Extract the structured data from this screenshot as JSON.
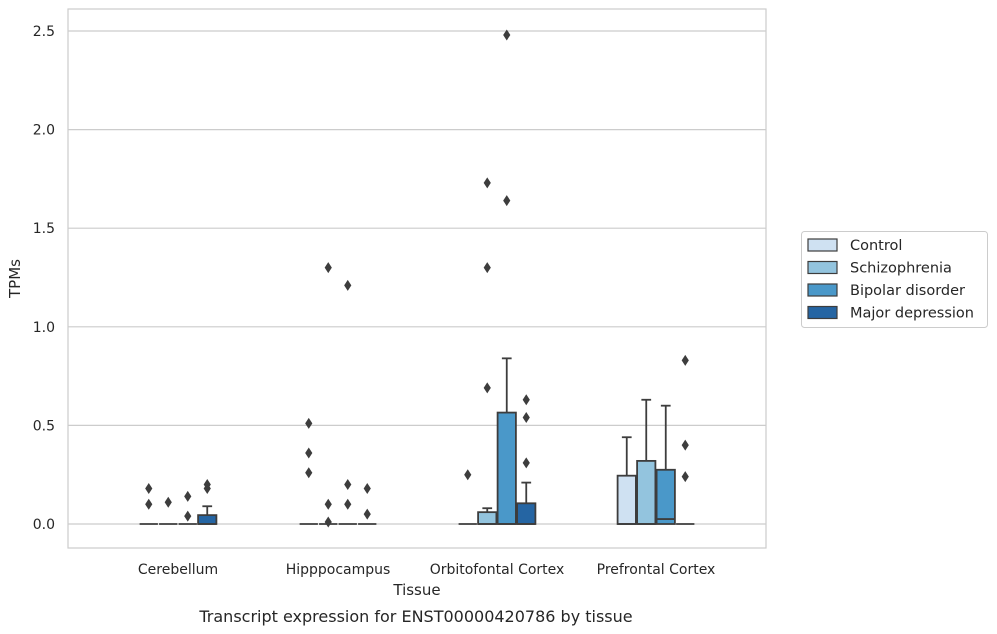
{
  "chart_data": {
    "type": "box",
    "caption": "Transcript expression for ENST00000420786 by tissue",
    "xlabel": "Tissue",
    "ylabel": "TPMs",
    "ylim": [
      -0.12,
      2.61
    ],
    "yticks": [
      0.0,
      0.5,
      1.0,
      1.5,
      2.0,
      2.5
    ],
    "ytick_labels": [
      "0.0",
      "0.5",
      "1.0",
      "1.5",
      "2.0",
      "2.5"
    ],
    "grid": true,
    "legend_position": "right, outside plot",
    "categories": [
      "Cerebellum",
      "Hipppocampus",
      "Orbitofontal Cortex",
      "Prefrontal Cortex"
    ],
    "series": [
      {
        "name": "Control",
        "color": "#cfe1f2",
        "boxes": [
          {
            "q1": 0,
            "median": 0,
            "q3": 0,
            "whisker_low": 0,
            "whisker_high": 0,
            "outliers": [
              0.1,
              0.18
            ]
          },
          {
            "q1": 0,
            "median": 0,
            "q3": 0,
            "whisker_low": 0,
            "whisker_high": 0,
            "outliers": [
              0.26,
              0.36,
              0.51
            ]
          },
          {
            "q1": 0,
            "median": 0,
            "q3": 0,
            "whisker_low": 0,
            "whisker_high": 0,
            "outliers": [
              0.25
            ]
          },
          {
            "q1": 0,
            "median": 0,
            "q3": 0.245,
            "whisker_low": 0,
            "whisker_high": 0.44,
            "outliers": []
          }
        ]
      },
      {
        "name": "Schizophrenia",
        "color": "#93c4de",
        "boxes": [
          {
            "q1": 0,
            "median": 0,
            "q3": 0,
            "whisker_low": 0,
            "whisker_high": 0,
            "outliers": [
              0.11
            ]
          },
          {
            "q1": 0,
            "median": 0,
            "q3": 0,
            "whisker_low": 0,
            "whisker_high": 0,
            "outliers": [
              0.01,
              0.1,
              1.3
            ]
          },
          {
            "q1": 0,
            "median": 0,
            "q3": 0.06,
            "whisker_low": 0,
            "whisker_high": 0.08,
            "outliers": [
              0.69,
              1.3,
              1.73
            ]
          },
          {
            "q1": 0,
            "median": 0,
            "q3": 0.32,
            "whisker_low": 0,
            "whisker_high": 0.63,
            "outliers": []
          }
        ]
      },
      {
        "name": "Bipolar disorder",
        "color": "#4a98c9",
        "boxes": [
          {
            "q1": 0,
            "median": 0,
            "q3": 0,
            "whisker_low": 0,
            "whisker_high": 0,
            "outliers": [
              0.04,
              0.14
            ]
          },
          {
            "q1": 0,
            "median": 0,
            "q3": 0,
            "whisker_low": 0,
            "whisker_high": 0,
            "outliers": [
              0.1,
              0.2,
              1.21
            ]
          },
          {
            "q1": 0,
            "median": 0,
            "q3": 0.565,
            "whisker_low": 0,
            "whisker_high": 0.84,
            "outliers": [
              1.64,
              2.48
            ]
          },
          {
            "q1": 0,
            "median": 0.025,
            "q3": 0.275,
            "whisker_low": 0,
            "whisker_high": 0.6,
            "outliers": []
          }
        ]
      },
      {
        "name": "Major depression",
        "color": "#2565a3",
        "boxes": [
          {
            "q1": 0,
            "median": 0,
            "q3": 0.045,
            "whisker_low": 0,
            "whisker_high": 0.09,
            "outliers": [
              0.18,
              0.2
            ]
          },
          {
            "q1": 0,
            "median": 0,
            "q3": 0,
            "whisker_low": 0,
            "whisker_high": 0,
            "outliers": [
              0.05,
              0.18
            ]
          },
          {
            "q1": 0,
            "median": 0,
            "q3": 0.105,
            "whisker_low": 0,
            "whisker_high": 0.21,
            "outliers": [
              0.31,
              0.54,
              0.63
            ]
          },
          {
            "q1": 0,
            "median": 0,
            "q3": 0,
            "whisker_low": 0,
            "whisker_high": 0,
            "outliers": [
              0.24,
              0.4,
              0.83
            ]
          }
        ]
      }
    ]
  }
}
